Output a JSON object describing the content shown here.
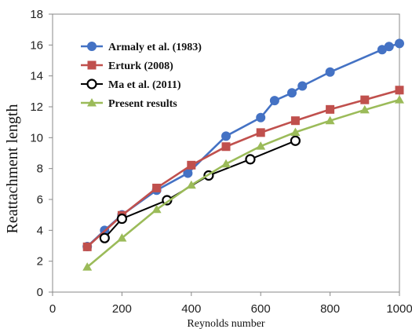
{
  "chart_data": {
    "type": "line",
    "title": "",
    "xlabel": "Reynolds number",
    "ylabel": "Reattachment length",
    "xlim": [
      0,
      1000
    ],
    "ylim": [
      0,
      18
    ],
    "x_ticks": [
      0,
      200,
      400,
      600,
      800,
      1000
    ],
    "y_ticks": [
      0,
      2,
      4,
      6,
      8,
      10,
      12,
      14,
      16,
      18
    ],
    "grid": false,
    "legend_position": "top-left",
    "series": [
      {
        "name": "Armaly et al. (1983)",
        "color": "#4472C4",
        "marker": "circle-filled",
        "x": [
          100,
          150,
          200,
          300,
          390,
          500,
          600,
          640,
          690,
          720,
          800,
          950,
          970,
          1000
        ],
        "y": [
          2.95,
          4.0,
          5.0,
          6.6,
          7.7,
          10.1,
          11.3,
          12.4,
          12.9,
          13.35,
          14.25,
          15.7,
          15.9,
          16.1
        ]
      },
      {
        "name": "Erturk (2008)",
        "color": "#C0504D",
        "marker": "square",
        "x": [
          100,
          200,
          300,
          400,
          500,
          600,
          700,
          800,
          900,
          1000
        ],
        "y": [
          2.93,
          4.97,
          6.74,
          8.22,
          9.42,
          10.33,
          11.1,
          11.83,
          12.45,
          13.08
        ]
      },
      {
        "name": "Ma et al. (2011)",
        "color": "#000000",
        "marker": "circle-open",
        "x": [
          150,
          200,
          330,
          450,
          570,
          700
        ],
        "y": [
          3.5,
          4.75,
          5.95,
          7.55,
          8.6,
          9.8
        ]
      },
      {
        "name": "Present results",
        "color": "#9BBB59",
        "marker": "triangle",
        "x": [
          100,
          200,
          300,
          400,
          500,
          600,
          700,
          800,
          900,
          1000
        ],
        "y": [
          1.62,
          3.5,
          5.35,
          6.93,
          8.3,
          9.45,
          10.35,
          11.1,
          11.8,
          12.45
        ]
      }
    ]
  }
}
